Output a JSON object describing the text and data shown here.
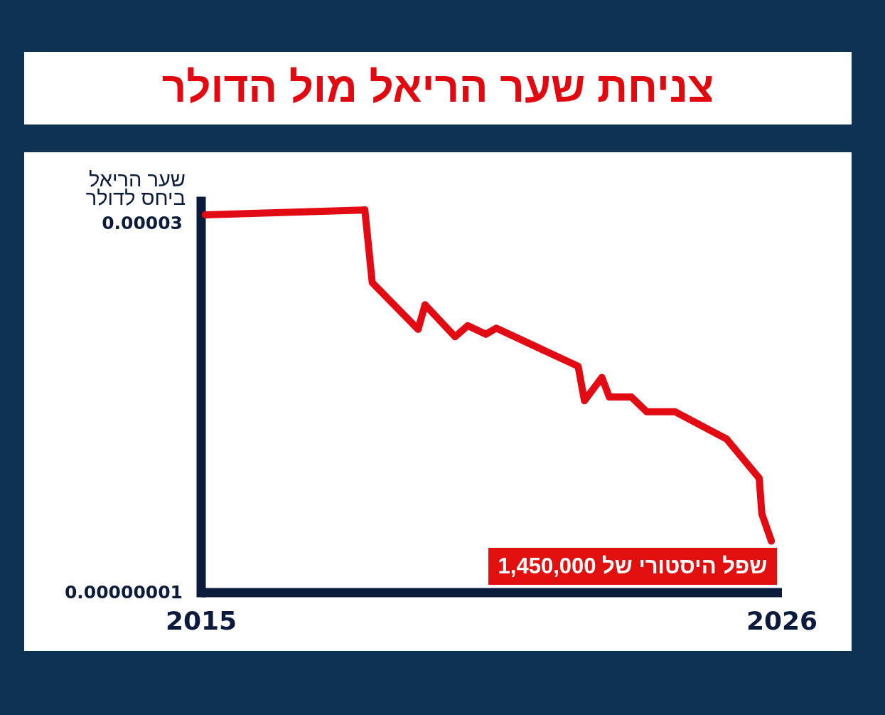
{
  "chart_data": {
    "type": "line",
    "title": "צניחת שער הריאל מול הדולר",
    "ylabel": "שער הריאל ביחס לדולר",
    "x": [
      2015.08,
      2018.1,
      2018.24,
      2019.11,
      2019.24,
      2019.81,
      2020.05,
      2020.39,
      2020.59,
      2022.14,
      2022.26,
      2022.59,
      2022.73,
      2023.15,
      2023.44,
      2023.98,
      2024.95,
      2025.57,
      2025.62,
      2025.8
    ],
    "series": [
      {
        "color": "#e30b13",
        "values": [
          3.07e-05,
          3.11e-05,
          2.52e-05,
          2.14e-05,
          2.34e-05,
          2.08e-05,
          2.17e-05,
          2.1e-05,
          2.15e-05,
          1.84e-05,
          1.56e-05,
          1.75e-05,
          1.59e-05,
          1.59e-05,
          1.47e-05,
          1.47e-05,
          1.25e-05,
          9.3e-06,
          6.4e-06,
          4.2e-06
        ]
      }
    ],
    "xlim": [
      2015,
      2026
    ],
    "xticks": [
      2015,
      2026
    ],
    "ylim": [
      1e-08,
      3.18e-05
    ],
    "yticks": [
      {
        "value": 1e-08,
        "label": "0.00000001"
      },
      {
        "value": 3e-05,
        "label": "0.00003"
      }
    ],
    "annotations": [
      "שפל היסטורי של 1,450,000"
    ],
    "line_style": "solid"
  }
}
